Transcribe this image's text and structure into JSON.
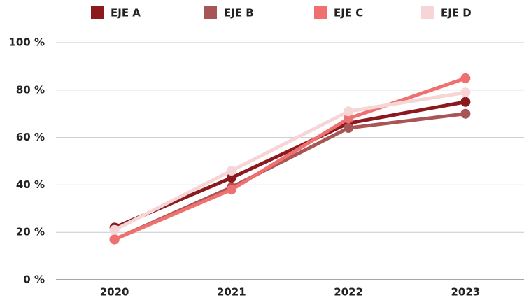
{
  "chart_data": {
    "type": "line",
    "categories": [
      "2020",
      "2021",
      "2022",
      "2023"
    ],
    "series": [
      {
        "name": "EJE A",
        "color": "#8b1a1f",
        "values": [
          22,
          43,
          66,
          75
        ]
      },
      {
        "name": "EJE B",
        "color": "#a85555",
        "values": [
          17,
          39,
          64,
          70
        ]
      },
      {
        "name": "EJE C",
        "color": "#f07070",
        "values": [
          17,
          38,
          68,
          85
        ]
      },
      {
        "name": "EJE D",
        "color": "#f5d5d5",
        "values": [
          21,
          46,
          71,
          79
        ]
      }
    ],
    "ylim": [
      0,
      100
    ],
    "yticks": [
      {
        "value": 0,
        "label": "0 %"
      },
      {
        "value": 20,
        "label": "20 %"
      },
      {
        "value": 40,
        "label": "40 %"
      },
      {
        "value": 60,
        "label": "60 %"
      },
      {
        "value": 80,
        "label": "80 %"
      },
      {
        "value": 100,
        "label": "100 %"
      }
    ],
    "grid": true,
    "legend": "top"
  }
}
